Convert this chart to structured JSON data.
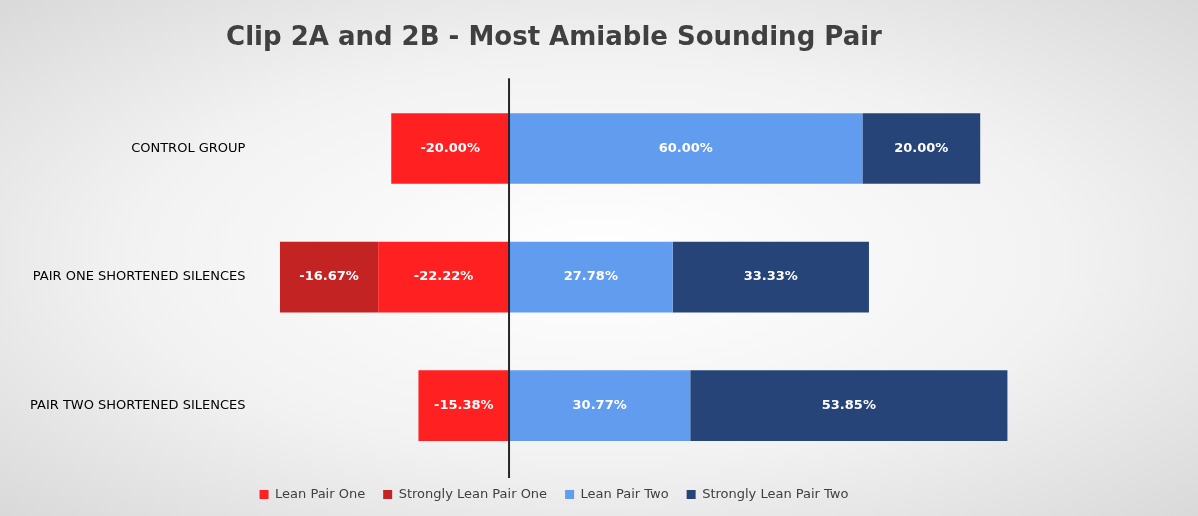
{
  "chart_data": {
    "type": "bar",
    "orientation": "horizontal",
    "stacked": true,
    "title": "Clip 2A and 2B - Most Amiable Sounding Pair",
    "categories": [
      "CONTROL GROUP",
      "PAIR ONE SHORTENED SILENCES",
      "PAIR TWO SHORTENED SILENCES"
    ],
    "legend": "bottom",
    "grid": false,
    "series": [
      {
        "name": "Lean Pair One",
        "color": "#ff2121",
        "values": [
          -20,
          -22.22,
          -15.38
        ],
        "value_labels": [
          "-20.00%",
          "-22.22%",
          "-15.38%"
        ]
      },
      {
        "name": "Strongly Lean Pair One",
        "color": "#c42323",
        "values": [
          null,
          -16.67,
          null
        ],
        "value_labels": [
          null,
          "-16.67%",
          null
        ]
      },
      {
        "name": "Lean Pair Two",
        "color": "#619cef",
        "values": [
          60,
          27.78,
          30.77
        ],
        "value_labels": [
          "60.00%",
          "27.78%",
          "30.77%"
        ]
      },
      {
        "name": "Strongly Lean Pair Two",
        "color": "#264478",
        "values": [
          20,
          33.33,
          53.85
        ],
        "value_labels": [
          "20.00%",
          "33.33%",
          "53.85%"
        ]
      }
    ]
  }
}
